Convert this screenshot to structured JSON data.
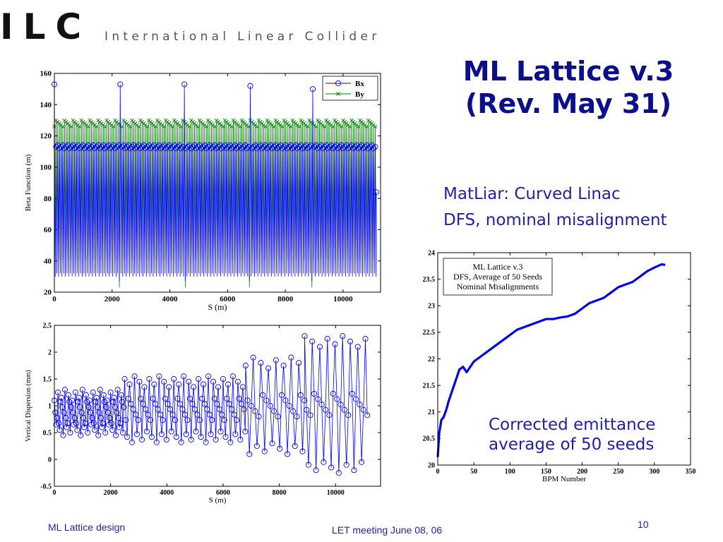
{
  "logo": {
    "mark": "ILC",
    "text": "International Linear Collider"
  },
  "slide": {
    "title_line1": "ML Lattice v.3",
    "title_line2": "(Rev. May 31)",
    "subtitle_line1": "MatLiar: Curved Linac",
    "subtitle_line2": "DFS, nominal misalignment",
    "note_line1": "Corrected emittance",
    "note_line2": "average of 50 seeds"
  },
  "footer": {
    "left": "ML Lattice design",
    "center": "LET meeting June 08, 06",
    "page": "10"
  },
  "colors": {
    "title": "#0b0f8c",
    "text_blue": "#1f1fa8",
    "bx": "#0000ff",
    "by": "#008000",
    "emittance": "#0000ee"
  },
  "chart_data": [
    {
      "id": "beta",
      "type": "line",
      "xlabel": "S (m)",
      "ylabel": "Beta Function (m)",
      "xlim": [
        0,
        11300
      ],
      "ylim": [
        20,
        160
      ],
      "xticks": [
        0,
        2000,
        4000,
        6000,
        8000,
        10000
      ],
      "yticks": [
        20,
        40,
        60,
        80,
        100,
        120,
        140,
        160
      ],
      "legend": {
        "placement": "top-right",
        "entries": [
          "Bx",
          "By"
        ]
      },
      "series": [
        {
          "name": "Bx",
          "marker": "circle",
          "pattern": {
            "period_m": 58.5,
            "peak": 113,
            "trough": 33,
            "x_start": 0,
            "x_end": 11150
          },
          "spikes": [
            {
              "x": 0,
              "y": 153
            },
            {
              "x": 2260,
              "y": 153
            },
            {
              "x": 4530,
              "y": 153
            },
            {
              "x": 6760,
              "y": 152
            },
            {
              "x": 8940,
              "y": 150
            }
          ],
          "dips": [
            {
              "x": 2260,
              "y": 27
            },
            {
              "x": 4530,
              "y": 27
            },
            {
              "x": 6760,
              "y": 27
            },
            {
              "x": 8940,
              "y": 27
            }
          ],
          "end": {
            "x": 11150,
            "y": 84
          }
        },
        {
          "name": "By",
          "marker": "x",
          "pattern": {
            "period_m": 58.5,
            "peak": 128,
            "trough": 42,
            "x_start": 0,
            "x_end": 11150
          },
          "dips": [
            {
              "x": 0,
              "y": 23
            },
            {
              "x": 2260,
              "y": 23
            },
            {
              "x": 4530,
              "y": 23
            },
            {
              "x": 6760,
              "y": 23
            },
            {
              "x": 8940,
              "y": 23
            }
          ]
        }
      ]
    },
    {
      "id": "dispersion",
      "type": "line",
      "xlabel": "S (m)",
      "ylabel": "Vertical Dispersion (mm)",
      "xlim": [
        0,
        11600
      ],
      "ylim": [
        -0.5,
        2.5
      ],
      "xticks": [
        0,
        2000,
        4000,
        6000,
        8000,
        10000
      ],
      "yticks": [
        -0.5,
        0,
        0.5,
        1,
        1.5,
        2,
        2.5
      ],
      "ytick_labels": [
        "-0.5",
        "0",
        "0.5",
        "1",
        "1.5",
        "2",
        "2.5"
      ],
      "series": [
        {
          "name": "",
          "marker": "circle",
          "segments": [
            {
              "x_start": 0,
              "x_end": 2500,
              "period_m": 125,
              "high": 1.2,
              "low": 0.55
            },
            {
              "x_start": 2500,
              "x_end": 6800,
              "period_m": 175,
              "high": 1.45,
              "low": 0.42
            },
            {
              "x_start": 6800,
              "x_end": 8900,
              "period_m": 270,
              "high": 1.8,
              "low": 0.2
            },
            {
              "x_start": 8900,
              "x_end": 11150,
              "period_m": 270,
              "high": 2.2,
              "low": -0.15
            }
          ]
        }
      ]
    },
    {
      "id": "emittance",
      "type": "line",
      "xlabel": "BPM Number",
      "ylabel": "",
      "xlim": [
        0,
        350
      ],
      "ylim": [
        20,
        24
      ],
      "xticks": [
        0,
        50,
        100,
        150,
        200,
        250,
        300,
        350
      ],
      "yticks": [
        20,
        20.5,
        21,
        21.5,
        22,
        22.5,
        23,
        23.5,
        24
      ],
      "ytick_labels": [
        "20",
        "20.5",
        "21",
        "21.5",
        "22",
        "22.5",
        "23",
        "23.5",
        "24"
      ],
      "inset_box": [
        "ML Lattice v.3",
        "DFS, Average of 50 Seeds",
        "Nominal Misalignments"
      ],
      "series": [
        {
          "name": "",
          "x": [
            0,
            2,
            5,
            8,
            12,
            15,
            20,
            25,
            30,
            35,
            40,
            45,
            50,
            55,
            60,
            70,
            80,
            90,
            100,
            110,
            120,
            130,
            140,
            150,
            160,
            170,
            180,
            190,
            200,
            210,
            220,
            230,
            240,
            250,
            260,
            270,
            280,
            290,
            300,
            310,
            315
          ],
          "y": [
            20.15,
            20.6,
            20.85,
            20.9,
            21.05,
            21.2,
            21.4,
            21.6,
            21.8,
            21.85,
            21.75,
            21.85,
            21.95,
            22.0,
            22.05,
            22.15,
            22.25,
            22.35,
            22.45,
            22.55,
            22.6,
            22.65,
            22.7,
            22.75,
            22.75,
            22.78,
            22.8,
            22.85,
            22.95,
            23.05,
            23.1,
            23.15,
            23.25,
            23.35,
            23.4,
            23.45,
            23.55,
            23.65,
            23.72,
            23.78,
            23.77
          ]
        }
      ]
    }
  ]
}
